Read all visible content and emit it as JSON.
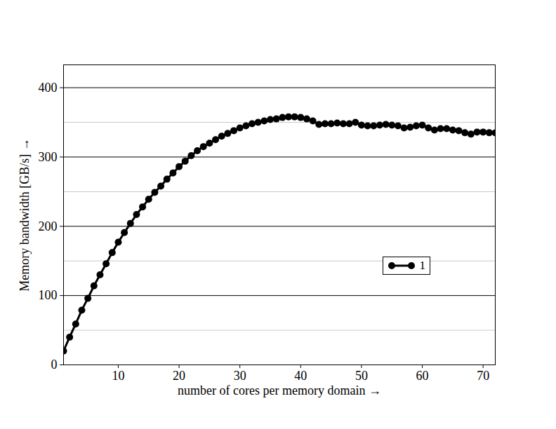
{
  "chart_data": {
    "type": "line",
    "x_label": "number of cores per memory domain",
    "y_label": "Memory bandwidth [GB/s]",
    "x": [
      1,
      2,
      3,
      4,
      5,
      6,
      7,
      8,
      9,
      10,
      11,
      12,
      13,
      14,
      15,
      16,
      17,
      18,
      19,
      20,
      21,
      22,
      23,
      24,
      25,
      26,
      27,
      28,
      29,
      30,
      31,
      32,
      33,
      34,
      35,
      36,
      37,
      38,
      39,
      40,
      41,
      42,
      43,
      44,
      45,
      46,
      47,
      48,
      49,
      50,
      51,
      52,
      53,
      54,
      55,
      56,
      57,
      58,
      59,
      60,
      61,
      62,
      63,
      64,
      65,
      66,
      67,
      68,
      69,
      70,
      71,
      72
    ],
    "series": [
      {
        "name": "1",
        "color": "#000000",
        "marker": "circle",
        "line_style": "solid",
        "values": [
          20,
          40,
          59,
          79,
          96,
          114,
          130,
          146,
          162,
          177,
          191,
          204,
          217,
          228,
          239,
          249,
          258,
          268,
          277,
          286,
          294,
          302,
          309,
          315,
          320,
          325,
          330,
          334,
          338,
          342,
          345,
          348,
          350,
          352,
          354,
          355,
          357,
          358,
          358,
          357,
          355,
          352,
          347,
          348,
          348,
          349,
          348,
          348,
          350,
          346,
          345,
          345,
          346,
          347,
          346,
          345,
          342,
          343,
          345,
          346,
          342,
          339,
          341,
          341,
          339,
          338,
          335,
          333,
          336,
          336,
          335,
          335
        ]
      }
    ],
    "xlim": [
      1,
      72
    ],
    "xticks": [
      10,
      20,
      30,
      40,
      50,
      60,
      70
    ],
    "ylim": [
      0,
      433
    ],
    "yticks": [
      0,
      100,
      200,
      300,
      400
    ],
    "grid": true,
    "legend": "lower right"
  }
}
